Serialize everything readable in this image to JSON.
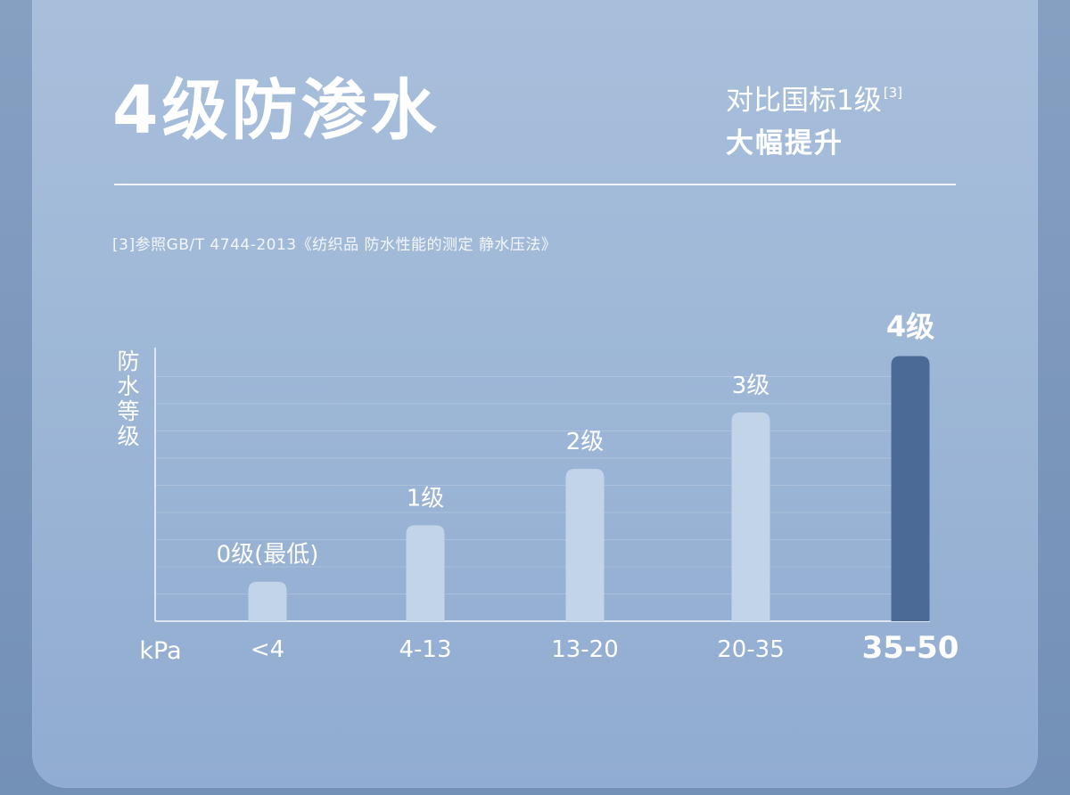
{
  "header": {
    "title": "4级防渗水",
    "compare_line1": "对比国标1级",
    "compare_ref": "[3]",
    "compare_line2": "大幅提升"
  },
  "footnote": "[3]参照GB/T 4744-2013《纺织品 防水性能的测定 静水压法》",
  "colors": {
    "bar": "#c2d4e8",
    "bar_highlight": "#4b6a96",
    "panel": "#a3bbd9",
    "background": "#7e99bd"
  },
  "chart_data": {
    "type": "bar",
    "ylabel": "防水等级",
    "xlabel": "kPa",
    "categories": [
      "<4",
      "4-13",
      "13-20",
      "20-35",
      "35-50"
    ],
    "values": [
      0,
      1,
      2,
      3,
      4
    ],
    "bar_labels": [
      "0级(最低)",
      "1级",
      "2级",
      "3级",
      "4级"
    ],
    "highlight_index": 4,
    "ylim": [
      -0.7,
      4.15
    ],
    "grid": true,
    "legend": "none"
  }
}
